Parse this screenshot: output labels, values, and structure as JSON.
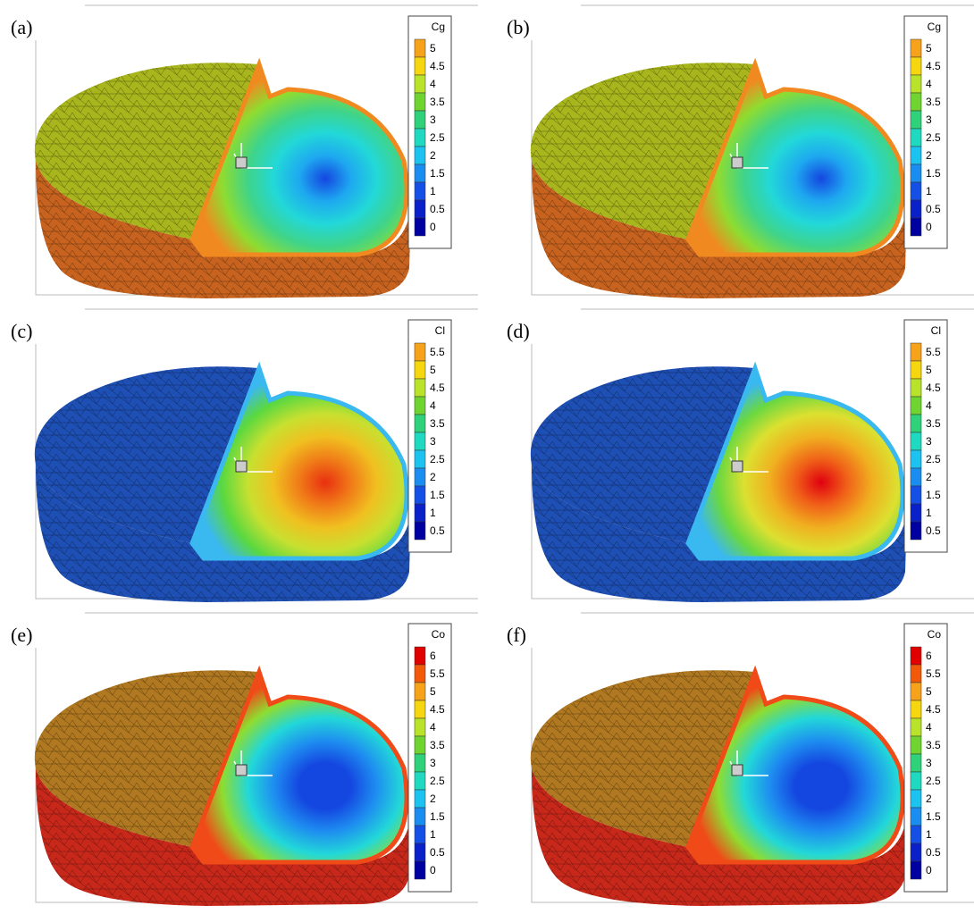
{
  "panels": [
    {
      "label": "(a)",
      "legend": {
        "title": "Cg",
        "levels": [
          5,
          4.5,
          4,
          3.5,
          3,
          2.5,
          2,
          1.5,
          1,
          0.5,
          0
        ]
      }
    },
    {
      "label": "(b)",
      "legend": {
        "title": "Cg",
        "levels": [
          5,
          4.5,
          4,
          3.5,
          3,
          2.5,
          2,
          1.5,
          1,
          0.5,
          0
        ]
      }
    },
    {
      "label": "(c)",
      "legend": {
        "title": "Cl",
        "levels": [
          5.5,
          5,
          4.5,
          4,
          3.5,
          3,
          2.5,
          2,
          1.5,
          1,
          0.5
        ]
      }
    },
    {
      "label": "(d)",
      "legend": {
        "title": "Cl",
        "levels": [
          5.5,
          5,
          4.5,
          4,
          3.5,
          3,
          2.5,
          2,
          1.5,
          1,
          0.5
        ]
      }
    },
    {
      "label": "(e)",
      "legend": {
        "title": "Co",
        "levels": [
          6,
          5.5,
          5,
          4.5,
          4,
          3.5,
          3,
          2.5,
          2,
          1.5,
          1,
          0.5,
          0
        ]
      }
    },
    {
      "label": "(f)",
      "legend": {
        "title": "Co",
        "levels": [
          6,
          5.5,
          5,
          4.5,
          4,
          3.5,
          3,
          2.5,
          2,
          1.5,
          1,
          0.5,
          0
        ]
      }
    }
  ]
}
